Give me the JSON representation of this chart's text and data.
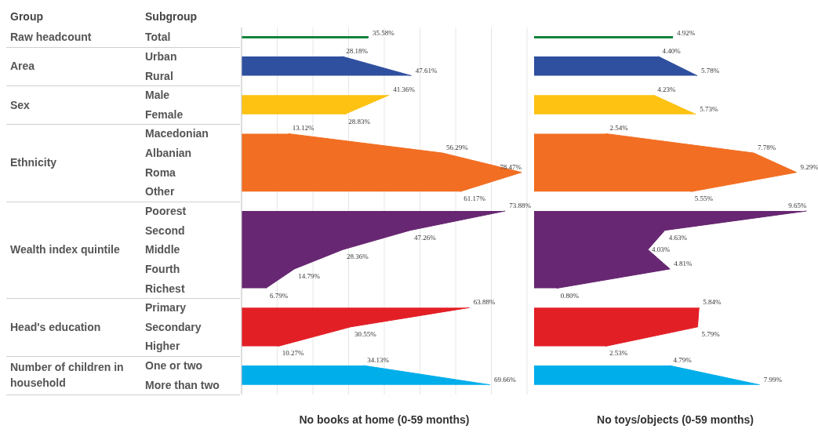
{
  "chart_data": [
    {
      "type": "area",
      "orientation": "horizontal",
      "ylabel": "Subgroup",
      "annotations": [
        "Group",
        "Raw headcount",
        "Area",
        "Sex",
        "Ethnicity",
        "Wealth index quintile",
        "Head's education",
        "Number of children in household"
      ],
      "xlabel": "No books at home (0-59 months)",
      "categories": [
        "Total",
        "Urban",
        "Rural",
        "Male",
        "Female",
        "Macedonian",
        "Albanian",
        "Roma",
        "Other",
        "Poorest",
        "Second",
        "Middle",
        "Fourth",
        "Richest",
        "Primary",
        "Secondary",
        "Higher",
        "One or two",
        "More than two"
      ],
      "xlim": [
        0,
        80
      ],
      "xticks": [
        {
          "value": 0,
          "label": null
        },
        {
          "value": 10,
          "label": null
        },
        {
          "value": 20,
          "label": null
        },
        {
          "value": 30,
          "label": null
        },
        {
          "value": 40,
          "label": null
        },
        {
          "value": 50,
          "label": null
        },
        {
          "value": 60,
          "label": null
        },
        {
          "value": 70,
          "label": null
        },
        {
          "value": 80,
          "label": null
        }
      ],
      "grid": "x",
      "tick_labels": "y",
      "series": [
        {
          "type": "bar",
          "color": "#11843c",
          "values": [
            35.58,
            null,
            null,
            null,
            null,
            null,
            null,
            null,
            null,
            null,
            null,
            null,
            null,
            null,
            null,
            null,
            null,
            null,
            null
          ],
          "value_labels": [
            "35.58%",
            null,
            null,
            null,
            null,
            null,
            null,
            null,
            null,
            null,
            null,
            null,
            null,
            null,
            null,
            null,
            null,
            null,
            null
          ]
        },
        {
          "color": "#2f4f9f",
          "values": [
            null,
            28.18,
            47.61,
            null,
            null,
            null,
            null,
            null,
            null,
            null,
            null,
            null,
            null,
            null,
            null,
            null,
            null,
            null,
            null
          ],
          "value_labels": [
            null,
            "28.18%",
            "47.61%",
            null,
            null,
            null,
            null,
            null,
            null,
            null,
            null,
            null,
            null,
            null,
            null,
            null,
            null,
            null,
            null
          ]
        },
        {
          "color": "#fdc212",
          "values": [
            null,
            null,
            null,
            41.36,
            28.83,
            null,
            null,
            null,
            null,
            null,
            null,
            null,
            null,
            null,
            null,
            null,
            null,
            null,
            null
          ],
          "value_labels": [
            null,
            null,
            null,
            "41.36%",
            "28.83%",
            null,
            null,
            null,
            null,
            null,
            null,
            null,
            null,
            null,
            null,
            null,
            null,
            null,
            null
          ]
        },
        {
          "color": "#f26e22",
          "values": [
            null,
            null,
            null,
            null,
            null,
            13.12,
            56.29,
            78.47,
            61.17,
            null,
            null,
            null,
            null,
            null,
            null,
            null,
            null,
            null,
            null
          ],
          "value_labels": [
            null,
            null,
            null,
            null,
            null,
            "13.12%",
            "56.29%",
            "78.47%",
            "61.17%",
            null,
            null,
            null,
            null,
            null,
            null,
            null,
            null,
            null,
            null
          ]
        },
        {
          "color": "#672772",
          "values": [
            null,
            null,
            null,
            null,
            null,
            null,
            null,
            null,
            null,
            73.88,
            47.26,
            28.36,
            14.79,
            6.79,
            null,
            null,
            null,
            null,
            null
          ],
          "value_labels": [
            null,
            null,
            null,
            null,
            null,
            null,
            null,
            null,
            null,
            "73.88%",
            "47.26%",
            "28.36%",
            "14.79%",
            "6.79%",
            null,
            null,
            null,
            null,
            null
          ]
        },
        {
          "color": "#e31f26",
          "values": [
            null,
            null,
            null,
            null,
            null,
            null,
            null,
            null,
            null,
            null,
            null,
            null,
            null,
            null,
            63.88,
            30.55,
            10.27,
            null,
            null
          ],
          "value_labels": [
            null,
            null,
            null,
            null,
            null,
            null,
            null,
            null,
            null,
            null,
            null,
            null,
            null,
            null,
            "63.88%",
            "30.55%",
            "10.27%",
            null,
            null
          ]
        },
        {
          "color": "#00aeea",
          "values": [
            null,
            null,
            null,
            null,
            null,
            null,
            null,
            null,
            null,
            null,
            null,
            null,
            null,
            null,
            null,
            null,
            null,
            34.13,
            69.66
          ],
          "value_labels": [
            null,
            null,
            null,
            null,
            null,
            null,
            null,
            null,
            null,
            null,
            null,
            null,
            null,
            null,
            null,
            null,
            null,
            "34.13%",
            "69.66%"
          ]
        }
      ]
    },
    {
      "type": "area",
      "orientation": "horizontal",
      "xlabel": "No toys/objects (0-59 months)",
      "categories": [
        null,
        null,
        null,
        null,
        null,
        null,
        null,
        null,
        null,
        null,
        null,
        null,
        null,
        null,
        null,
        null,
        null,
        null,
        null
      ],
      "xlim": [
        0,
        10
      ],
      "tick_labels": false,
      "series": [
        {
          "type": "bar",
          "color": "#11843c",
          "values": [
            4.92,
            null,
            null,
            null,
            null,
            null,
            null,
            null,
            null,
            null,
            null,
            null,
            null,
            null,
            null,
            null,
            null,
            null,
            null
          ],
          "value_labels": [
            "4.92%",
            null,
            null,
            null,
            null,
            null,
            null,
            null,
            null,
            null,
            null,
            null,
            null,
            null,
            null,
            null,
            null,
            null,
            null
          ]
        },
        {
          "color": "#2f4f9f",
          "values": [
            null,
            4.4,
            5.78,
            null,
            null,
            null,
            null,
            null,
            null,
            null,
            null,
            null,
            null,
            null,
            null,
            null,
            null,
            null,
            null
          ],
          "value_labels": [
            null,
            "4.40%",
            "5.78%",
            null,
            null,
            null,
            null,
            null,
            null,
            null,
            null,
            null,
            null,
            null,
            null,
            null,
            null,
            null,
            null
          ]
        },
        {
          "color": "#fdc212",
          "values": [
            null,
            null,
            null,
            4.23,
            5.73,
            null,
            null,
            null,
            null,
            null,
            null,
            null,
            null,
            null,
            null,
            null,
            null,
            null,
            null
          ],
          "value_labels": [
            null,
            null,
            null,
            "4.23%",
            "5.73%",
            null,
            null,
            null,
            null,
            null,
            null,
            null,
            null,
            null,
            null,
            null,
            null,
            null,
            null
          ]
        },
        {
          "color": "#f26e22",
          "values": [
            null,
            null,
            null,
            null,
            null,
            2.54,
            7.78,
            9.29,
            5.55,
            null,
            null,
            null,
            null,
            null,
            null,
            null,
            null,
            null,
            null
          ],
          "value_labels": [
            null,
            null,
            null,
            null,
            null,
            "2.54%",
            "7.78%",
            "9.29%",
            "5.55%",
            null,
            null,
            null,
            null,
            null,
            null,
            null,
            null,
            null,
            null
          ]
        },
        {
          "color": "#672772",
          "values": [
            null,
            null,
            null,
            null,
            null,
            null,
            null,
            null,
            null,
            9.65,
            4.63,
            4.03,
            4.81,
            0.8,
            null,
            null,
            null,
            null,
            null
          ],
          "value_labels": [
            null,
            null,
            null,
            null,
            null,
            null,
            null,
            null,
            null,
            "9.65%",
            "4.63%",
            "4.03%",
            "4.81%",
            "0.80%",
            null,
            null,
            null,
            null,
            null
          ]
        },
        {
          "color": "#e31f26",
          "values": [
            null,
            null,
            null,
            null,
            null,
            null,
            null,
            null,
            null,
            null,
            null,
            null,
            null,
            null,
            5.84,
            5.79,
            2.53,
            null,
            null
          ],
          "value_labels": [
            null,
            null,
            null,
            null,
            null,
            null,
            null,
            null,
            null,
            null,
            null,
            null,
            null,
            null,
            "5.84%",
            "5.79%",
            "2.53%",
            null,
            null
          ]
        },
        {
          "color": "#00aeea",
          "values": [
            null,
            null,
            null,
            null,
            null,
            null,
            null,
            null,
            null,
            null,
            null,
            null,
            null,
            null,
            null,
            null,
            null,
            4.79,
            7.99
          ],
          "value_labels": [
            null,
            null,
            null,
            null,
            null,
            null,
            null,
            null,
            null,
            null,
            null,
            null,
            null,
            null,
            null,
            null,
            null,
            "4.79%",
            "7.99%"
          ]
        }
      ]
    }
  ]
}
